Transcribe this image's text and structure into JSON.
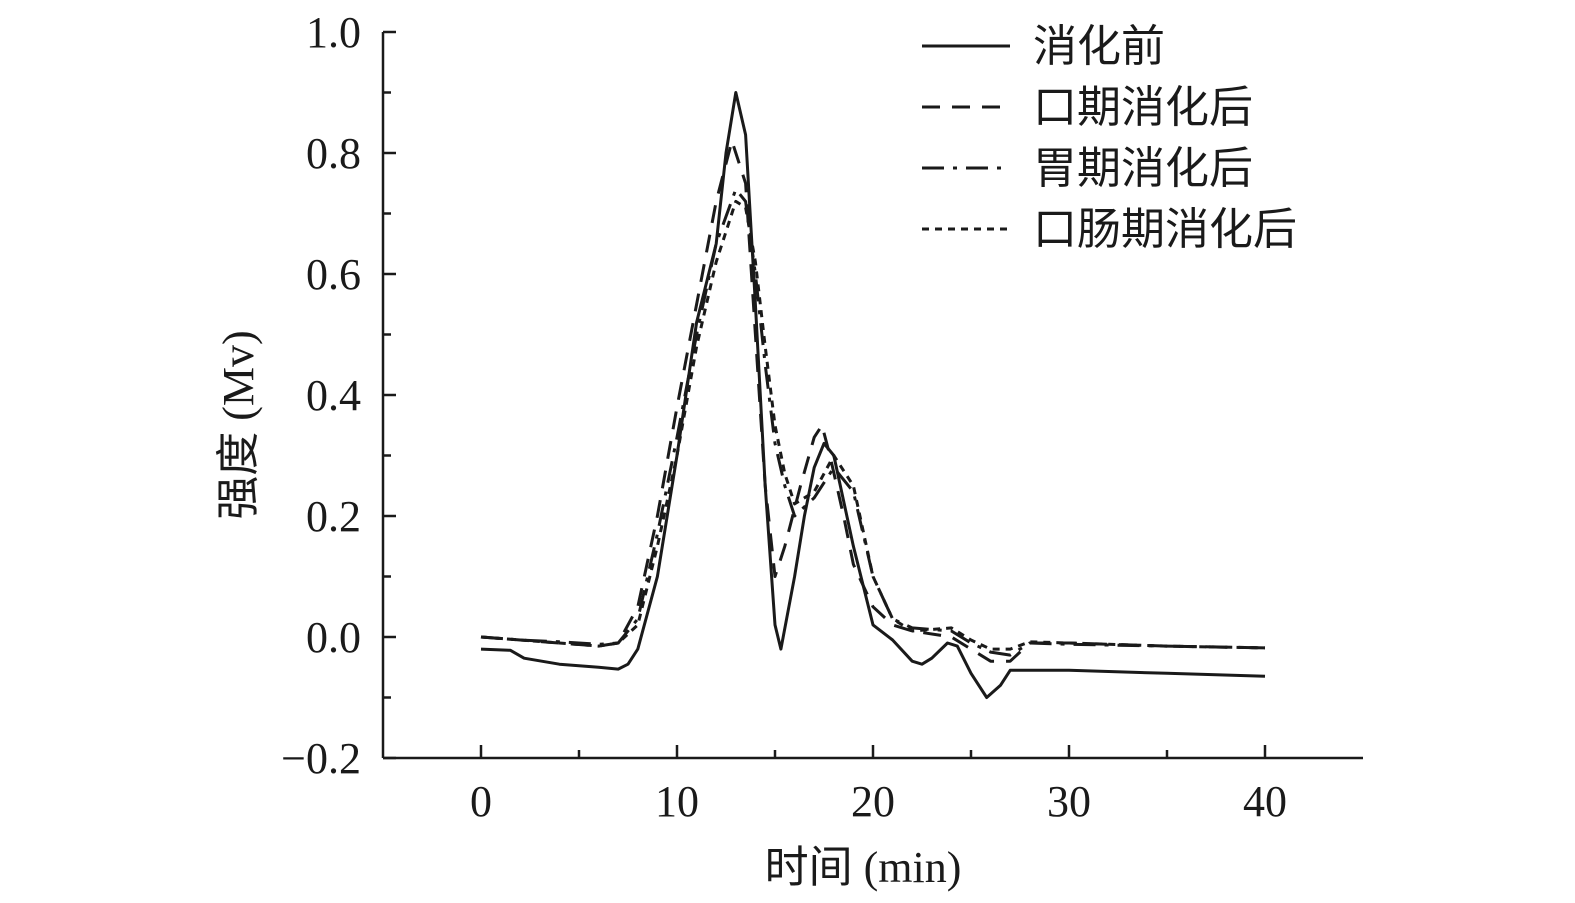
{
  "chart_data": {
    "type": "line",
    "xlabel": "时间 (min)",
    "ylabel": "强度 (Mv)",
    "xlim": [
      -5,
      45
    ],
    "ylim": [
      -0.2,
      1.0
    ],
    "xticks": [
      "0",
      "10",
      "20",
      "30",
      "40"
    ],
    "yticks": [
      "−0.2",
      "0.0",
      "0.2",
      "0.4",
      "0.6",
      "0.8",
      "1.0"
    ],
    "grid": false,
    "legend_position": "top-right",
    "series": [
      {
        "name": "消化前",
        "style": "solid",
        "points": [
          [
            0,
            -0.02
          ],
          [
            1.5,
            -0.022
          ],
          [
            2.2,
            -0.035
          ],
          [
            4,
            -0.045
          ],
          [
            6,
            -0.05
          ],
          [
            7,
            -0.053
          ],
          [
            7.5,
            -0.045
          ],
          [
            8,
            -0.02
          ],
          [
            9,
            0.1
          ],
          [
            10,
            0.3
          ],
          [
            11,
            0.52
          ],
          [
            12,
            0.65
          ],
          [
            12.5,
            0.8
          ],
          [
            13,
            0.9
          ],
          [
            13.5,
            0.83
          ],
          [
            14,
            0.55
          ],
          [
            14.5,
            0.25
          ],
          [
            15,
            0.02
          ],
          [
            15.3,
            -0.02
          ],
          [
            16,
            0.1
          ],
          [
            16.5,
            0.2
          ],
          [
            17,
            0.28
          ],
          [
            17.5,
            0.32
          ],
          [
            18,
            0.3
          ],
          [
            19,
            0.15
          ],
          [
            20,
            0.02
          ],
          [
            21,
            -0.005
          ],
          [
            22,
            -0.04
          ],
          [
            22.5,
            -0.045
          ],
          [
            23,
            -0.035
          ],
          [
            23.8,
            -0.01
          ],
          [
            24.3,
            -0.015
          ],
          [
            25,
            -0.06
          ],
          [
            25.8,
            -0.1
          ],
          [
            26.5,
            -0.08
          ],
          [
            27,
            -0.055
          ],
          [
            30,
            -0.055
          ],
          [
            35,
            -0.06
          ],
          [
            40,
            -0.065
          ]
        ]
      },
      {
        "name": "口期消化后",
        "style": "dashed",
        "points": [
          [
            0,
            0.0
          ],
          [
            2,
            -0.005
          ],
          [
            4,
            -0.01
          ],
          [
            6,
            -0.015
          ],
          [
            7,
            -0.01
          ],
          [
            8,
            0.05
          ],
          [
            9,
            0.2
          ],
          [
            10,
            0.38
          ],
          [
            11,
            0.55
          ],
          [
            12,
            0.72
          ],
          [
            12.8,
            0.82
          ],
          [
            13.5,
            0.75
          ],
          [
            14,
            0.5
          ],
          [
            14.5,
            0.25
          ],
          [
            15,
            0.1
          ],
          [
            15.5,
            0.15
          ],
          [
            16.3,
            0.25
          ],
          [
            17,
            0.33
          ],
          [
            17.4,
            0.35
          ],
          [
            17.8,
            0.3
          ],
          [
            18.5,
            0.2
          ],
          [
            19,
            0.12
          ],
          [
            20,
            0.05
          ],
          [
            21,
            0.02
          ],
          [
            22,
            0.01
          ],
          [
            24,
            0.0
          ],
          [
            25,
            -0.02
          ],
          [
            26,
            -0.04
          ],
          [
            27,
            -0.04
          ],
          [
            28,
            -0.01
          ],
          [
            30,
            -0.01
          ],
          [
            35,
            -0.015
          ],
          [
            40,
            -0.018
          ]
        ]
      },
      {
        "name": "胃期消化后",
        "style": "dashdot",
        "points": [
          [
            0,
            0.0
          ],
          [
            2,
            -0.005
          ],
          [
            4,
            -0.008
          ],
          [
            6,
            -0.012
          ],
          [
            7,
            -0.01
          ],
          [
            8,
            0.03
          ],
          [
            9,
            0.17
          ],
          [
            10,
            0.33
          ],
          [
            11,
            0.5
          ],
          [
            12,
            0.65
          ],
          [
            13,
            0.74
          ],
          [
            13.5,
            0.72
          ],
          [
            14,
            0.6
          ],
          [
            14.5,
            0.45
          ],
          [
            15,
            0.32
          ],
          [
            15.5,
            0.25
          ],
          [
            16,
            0.2
          ],
          [
            17,
            0.23
          ],
          [
            18,
            0.28
          ],
          [
            19,
            0.24
          ],
          [
            20,
            0.1
          ],
          [
            21,
            0.03
          ],
          [
            22,
            0.015
          ],
          [
            24,
            0.01
          ],
          [
            25,
            -0.01
          ],
          [
            26,
            -0.025
          ],
          [
            27,
            -0.03
          ],
          [
            28,
            -0.01
          ],
          [
            30,
            -0.012
          ],
          [
            35,
            -0.015
          ],
          [
            40,
            -0.018
          ]
        ]
      },
      {
        "name": "口肠期消化后",
        "style": "dotted",
        "points": [
          [
            0,
            0.0
          ],
          [
            2,
            -0.005
          ],
          [
            4,
            -0.01
          ],
          [
            6,
            -0.015
          ],
          [
            7,
            -0.01
          ],
          [
            8,
            0.02
          ],
          [
            9,
            0.15
          ],
          [
            10,
            0.3
          ],
          [
            11,
            0.48
          ],
          [
            12,
            0.62
          ],
          [
            13,
            0.72
          ],
          [
            13.5,
            0.71
          ],
          [
            14,
            0.62
          ],
          [
            14.5,
            0.48
          ],
          [
            15,
            0.35
          ],
          [
            15.5,
            0.27
          ],
          [
            16,
            0.22
          ],
          [
            17,
            0.24
          ],
          [
            18,
            0.3
          ],
          [
            19,
            0.25
          ],
          [
            20,
            0.1
          ],
          [
            21,
            0.03
          ],
          [
            22,
            0.01
          ],
          [
            24,
            0.015
          ],
          [
            25,
            -0.005
          ],
          [
            26,
            -0.02
          ],
          [
            27,
            -0.02
          ],
          [
            28,
            -0.008
          ],
          [
            30,
            -0.01
          ],
          [
            35,
            -0.015
          ],
          [
            40,
            -0.018
          ]
        ]
      }
    ]
  }
}
